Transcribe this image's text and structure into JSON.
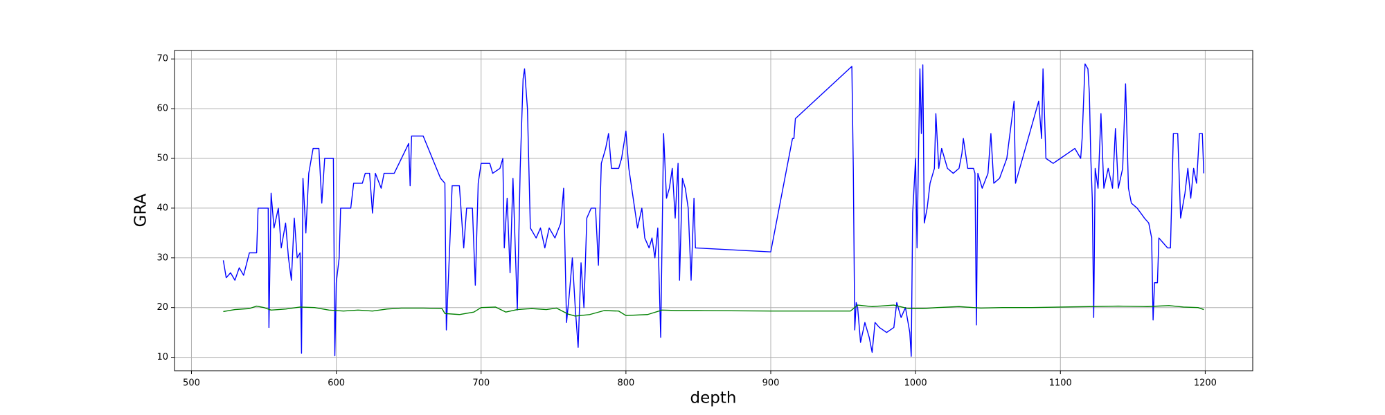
{
  "chart_data": {
    "type": "line",
    "xlabel": "depth",
    "ylabel": "GRA",
    "xlim": [
      488.3,
      1232.8
    ],
    "ylim": [
      7.3,
      71.7
    ],
    "xticks": [
      500,
      600,
      700,
      800,
      900,
      1000,
      1100,
      1200
    ],
    "yticks": [
      10,
      20,
      30,
      40,
      50,
      60,
      70
    ],
    "grid": true,
    "series": [
      {
        "color": "#0000ff",
        "x": [
          522,
          524,
          527,
          530,
          533,
          536,
          540,
          545,
          546,
          553,
          553.5,
          555,
          557,
          560,
          562,
          565,
          567,
          569,
          571,
          573,
          575,
          576,
          577,
          579,
          581,
          584,
          588,
          590,
          592,
          598,
          599,
          600,
          602,
          603,
          610,
          612,
          618,
          620,
          623,
          625,
          627,
          631,
          633,
          640,
          645,
          650,
          651,
          652,
          660,
          672,
          675,
          676,
          678,
          680,
          685,
          688,
          690,
          694,
          696,
          698,
          700,
          706,
          708,
          713,
          715,
          716,
          718,
          720,
          722,
          725,
          727,
          729,
          730,
          732,
          734,
          738,
          741,
          744,
          747,
          751,
          755,
          757,
          759,
          761,
          763,
          765,
          767,
          769,
          771,
          773,
          776,
          779,
          781,
          783,
          786,
          788,
          790,
          795,
          797,
          800,
          802,
          805,
          808,
          811,
          813,
          816,
          818,
          820,
          822,
          824,
          826,
          828,
          830,
          832,
          834,
          836,
          837,
          839,
          841,
          843,
          845,
          847,
          848,
          900,
          915,
          916,
          917,
          956,
          957,
          958,
          959,
          960,
          962,
          965,
          968,
          970,
          972,
          975,
          980,
          985,
          987,
          990,
          993,
          996,
          997,
          998,
          1000,
          1001,
          1003,
          1004,
          1005,
          1006,
          1008,
          1010,
          1013,
          1014,
          1016,
          1018,
          1020,
          1022,
          1026,
          1030,
          1032,
          1033,
          1036,
          1040,
          1041,
          1042,
          1043,
          1046,
          1050,
          1052,
          1054,
          1058,
          1063,
          1068,
          1069,
          1085,
          1087,
          1088,
          1090,
          1095,
          1100,
          1105,
          1110,
          1114,
          1115,
          1117,
          1119,
          1120,
          1121,
          1122,
          1123,
          1124,
          1126,
          1128,
          1130,
          1133,
          1136,
          1138,
          1140,
          1143,
          1145,
          1147,
          1149,
          1153,
          1158,
          1161,
          1163,
          1164,
          1165,
          1167,
          1168,
          1171,
          1174,
          1176,
          1178,
          1181,
          1183,
          1186,
          1188,
          1190,
          1192,
          1194,
          1196,
          1198,
          1199
        ],
        "values": [
          29.5,
          26,
          27,
          25.5,
          28,
          26.5,
          31,
          31,
          40,
          40,
          16,
          43,
          36,
          40,
          32,
          37,
          30,
          25.5,
          38,
          30,
          31,
          10.8,
          46,
          35,
          47,
          52,
          52,
          41,
          50,
          50,
          10.3,
          25,
          30,
          40,
          40,
          45,
          45,
          47,
          47,
          39,
          47,
          44,
          47,
          47,
          50,
          53,
          44.5,
          54.5,
          54.5,
          46,
          45,
          15.5,
          30,
          44.5,
          44.5,
          32,
          40,
          40,
          24.5,
          45,
          49,
          49,
          47,
          48,
          50,
          32,
          42,
          27,
          46,
          19.5,
          48,
          66,
          68,
          60,
          36,
          34,
          36,
          32,
          36,
          34,
          37,
          44,
          17,
          23,
          30,
          20,
          12,
          29,
          20,
          38,
          40,
          40,
          28.5,
          49,
          52,
          55,
          48,
          48,
          50,
          55.5,
          48,
          42,
          36,
          40,
          34,
          32,
          34,
          30,
          36,
          14,
          55,
          42,
          44,
          48,
          38,
          49,
          25.5,
          46,
          44,
          40,
          25.5,
          42,
          32,
          31.2,
          54,
          54,
          58,
          68.5,
          48,
          15.5,
          21,
          20,
          13,
          17,
          14,
          11,
          17,
          16,
          15,
          16,
          21,
          18,
          20,
          15,
          10.2,
          39,
          50,
          32,
          68,
          55,
          68.8,
          37,
          40,
          45,
          48,
          59,
          48,
          52,
          50,
          48,
          47,
          48,
          51,
          54,
          48,
          48,
          47,
          16.5,
          47,
          44,
          47,
          55,
          45,
          46,
          50,
          61.5,
          45,
          61.5,
          54,
          68,
          50,
          49,
          50,
          51,
          52,
          50,
          54,
          69,
          68,
          63,
          50,
          42,
          18,
          48,
          44,
          59,
          44,
          48,
          44,
          56,
          44,
          48,
          65,
          44,
          41,
          40,
          38,
          37,
          34,
          17.5,
          25,
          25,
          34,
          33,
          32,
          32,
          55,
          55,
          38,
          43,
          48,
          42,
          48,
          45,
          55,
          55,
          47
        ]
      },
      {
        "color": "#008000",
        "x": [
          522,
          530,
          540,
          545,
          550,
          555,
          565,
          575,
          585,
          595,
          605,
          615,
          625,
          635,
          645,
          660,
          673,
          675,
          685,
          695,
          700,
          710,
          717,
          725,
          735,
          745,
          752,
          760,
          765,
          775,
          785,
          795,
          800,
          815,
          825,
          835,
          850,
          900,
          955,
          960,
          970,
          985,
          995,
          1005,
          1015,
          1030,
          1045,
          1060,
          1080,
          1100,
          1120,
          1140,
          1160,
          1175,
          1185,
          1195,
          1199
        ],
        "values": [
          19.2,
          19.6,
          19.8,
          20.3,
          20,
          19.5,
          19.7,
          20.1,
          20,
          19.5,
          19.3,
          19.5,
          19.3,
          19.7,
          19.9,
          19.9,
          19.8,
          18.8,
          18.6,
          19.1,
          20,
          20.1,
          19.1,
          19.6,
          19.8,
          19.6,
          19.9,
          18.7,
          18.3,
          18.6,
          19.4,
          19.3,
          18.4,
          18.6,
          19.5,
          19.4,
          19.4,
          19.3,
          19.3,
          20.5,
          20.2,
          20.5,
          19.8,
          19.8,
          20,
          20.2,
          19.9,
          20,
          20,
          20.1,
          20.2,
          20.3,
          20.2,
          20.4,
          20.1,
          20,
          19.6
        ]
      }
    ]
  }
}
